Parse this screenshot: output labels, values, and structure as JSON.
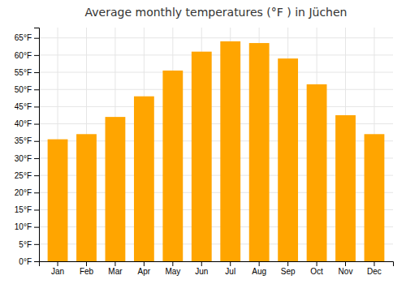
{
  "chart_data": {
    "type": "bar",
    "title": "Average monthly temperatures (°F ) in Jüchen",
    "categories": [
      "Jan",
      "Feb",
      "Mar",
      "Apr",
      "May",
      "Jun",
      "Jul",
      "Aug",
      "Sep",
      "Oct",
      "Nov",
      "Dec"
    ],
    "values": [
      35.5,
      37.0,
      42.0,
      48.0,
      55.5,
      61.0,
      64.0,
      63.5,
      59.0,
      51.5,
      42.5,
      37.0
    ],
    "color": "#FFA500",
    "ylim": [
      0,
      68
    ],
    "yticks": [
      {
        "value": 0,
        "label": "0°F"
      },
      {
        "value": 5,
        "label": "5°F"
      },
      {
        "value": 10,
        "label": "10°F"
      },
      {
        "value": 15,
        "label": "15°F"
      },
      {
        "value": 20,
        "label": "20°F"
      },
      {
        "value": 25,
        "label": "25°F"
      },
      {
        "value": 30,
        "label": "30°F"
      },
      {
        "value": 35,
        "label": "35°F"
      },
      {
        "value": 40,
        "label": "40°F"
      },
      {
        "value": 45,
        "label": "45°F"
      },
      {
        "value": 50,
        "label": "50°F"
      },
      {
        "value": 55,
        "label": "55°F"
      },
      {
        "value": 60,
        "label": "60°F"
      },
      {
        "value": 65,
        "label": "65°F"
      }
    ],
    "grid": true
  }
}
